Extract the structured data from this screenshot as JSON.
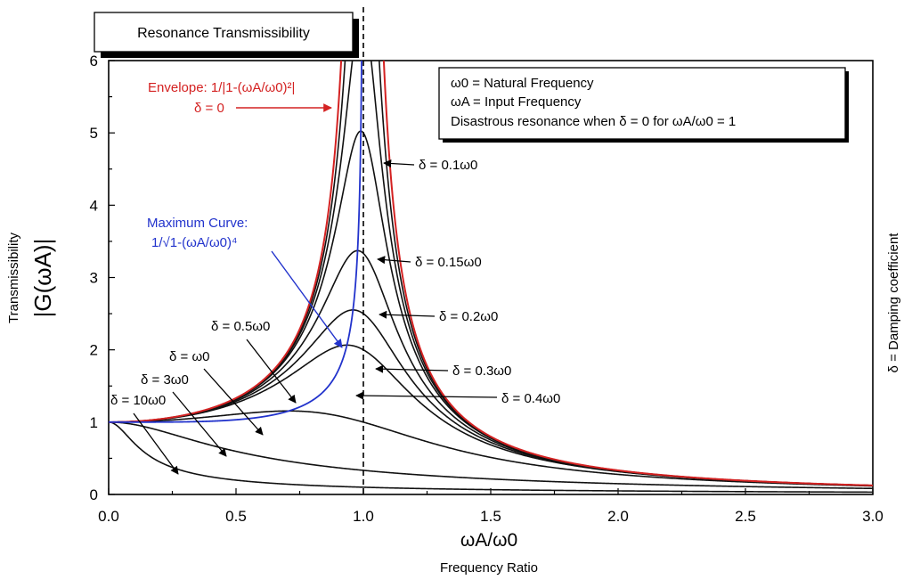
{
  "chart_data": {
    "type": "line",
    "title": "Resonance Transmissibility",
    "xlabel_symbol": "ωA/ω0",
    "xlabel": "Frequency Ratio",
    "ylabel": "Transmissibility",
    "ylabel_symbol": "|G(ωA)|",
    "right_label": "δ = Damping coefficient",
    "xlim": [
      0,
      3.0
    ],
    "ylim": [
      0,
      6
    ],
    "x_ticks": [
      "0.0",
      "0.5",
      "1.0",
      "1.5",
      "2.0",
      "2.5",
      "3.0"
    ],
    "y_ticks": [
      "0",
      "1",
      "2",
      "3",
      "4",
      "5",
      "6"
    ],
    "resonance_line_x": 1.0,
    "legend_box": [
      "ω0 = Natural Frequency",
      "ωA = Input Frequency",
      "Disastrous resonance when δ = 0 for ωA/ω0 = 1"
    ],
    "envelope": {
      "label": "Envelope: 1/|1-(ωA/ω0)²|",
      "label2": "δ = 0",
      "color": "#d42222"
    },
    "maximum_curve": {
      "label": "Maximum Curve:",
      "label2": "1/√1-(ωA/ω0)⁴",
      "color": "#2233cc"
    },
    "damping_color": "#111111",
    "damping_values": [
      0.1,
      0.15,
      0.2,
      0.3,
      0.4,
      0.5,
      1,
      3,
      10
    ],
    "series_labels": [
      "δ = 0.1ω0",
      "δ = 0.15ω0",
      "δ = 0.2ω0",
      "δ = 0.3ω0",
      "δ = 0.4ω0",
      "δ = 0.5ω0",
      "δ = ω0",
      "δ = 3ω0",
      "δ = 10ω0"
    ]
  }
}
